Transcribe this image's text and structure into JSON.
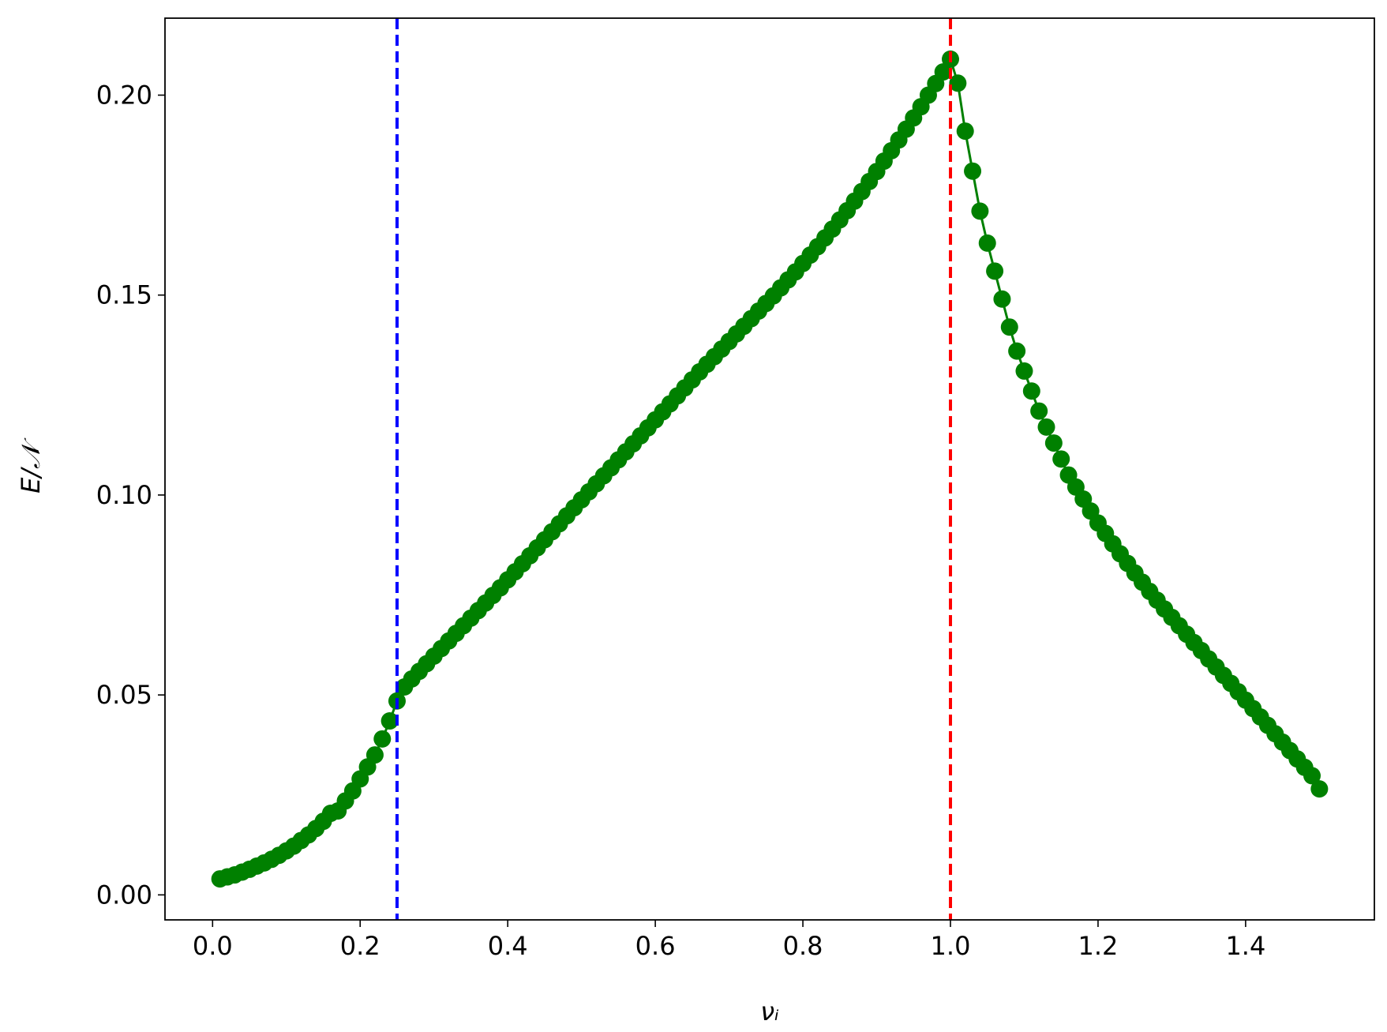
{
  "chart_data": {
    "type": "line",
    "xlabel": "νᵢ",
    "ylabel": "E/𝒩",
    "xlim": [
      -0.0645,
      1.5745
    ],
    "ylim": [
      -0.00625,
      0.21925
    ],
    "xticks": [
      {
        "value": 0,
        "label": "0.0"
      },
      0.2,
      0.4,
      0.6,
      0.8,
      {
        "value": 1,
        "label": "1.0"
      },
      1.2,
      1.4
    ],
    "yticks": [
      {
        "value": 0,
        "label": "0.00"
      },
      0.05,
      {
        "value": 0.1,
        "label": "0.10"
      },
      0.15,
      {
        "value": 0.2,
        "label": "0.20"
      }
    ],
    "vlines": [
      {
        "x": 0.25,
        "color": "#0000ff"
      },
      {
        "x": 1.0,
        "color": "#ff0000"
      }
    ],
    "series": [
      {
        "color": "#008000",
        "x": [
          0.01,
          0.02,
          0.03,
          0.04,
          0.05,
          0.06,
          0.07,
          0.08,
          0.09,
          0.1,
          0.11,
          0.12,
          0.13,
          0.14,
          0.15,
          0.16,
          0.17,
          0.18,
          0.19,
          0.2,
          0.21,
          0.22,
          0.23,
          0.24,
          0.25,
          0.26,
          0.27,
          0.28,
          0.29,
          0.3,
          0.31,
          0.32,
          0.33,
          0.34,
          0.35,
          0.36,
          0.37,
          0.38,
          0.39,
          0.4,
          0.41,
          0.42,
          0.43,
          0.44,
          0.45,
          0.46,
          0.47,
          0.48,
          0.49,
          0.5,
          0.51,
          0.52,
          0.53,
          0.54,
          0.55,
          0.56,
          0.57,
          0.58,
          0.59,
          0.6,
          0.61,
          0.62,
          0.63,
          0.64,
          0.65,
          0.66,
          0.67,
          0.68,
          0.69,
          0.7,
          0.71,
          0.72,
          0.73,
          0.74,
          0.75,
          0.76,
          0.77,
          0.78,
          0.79,
          0.8,
          0.81,
          0.82,
          0.83,
          0.84,
          0.85,
          0.86,
          0.87,
          0.88,
          0.89,
          0.9,
          0.91,
          0.92,
          0.93,
          0.94,
          0.95,
          0.96,
          0.97,
          0.98,
          0.99,
          1.0,
          1.01,
          1.02,
          1.03,
          1.04,
          1.05,
          1.06,
          1.07,
          1.08,
          1.09,
          1.1,
          1.11,
          1.12,
          1.13,
          1.14,
          1.15,
          1.16,
          1.17,
          1.18,
          1.19,
          1.2,
          1.21,
          1.22,
          1.23,
          1.24,
          1.25,
          1.26,
          1.27,
          1.28,
          1.29,
          1.3,
          1.31,
          1.32,
          1.33,
          1.34,
          1.35,
          1.36,
          1.37,
          1.38,
          1.39,
          1.4,
          1.41,
          1.42,
          1.43,
          1.44,
          1.45,
          1.46,
          1.47,
          1.48,
          1.49,
          1.5
        ],
        "values": [
          0.004,
          0.0045,
          0.005,
          0.0057,
          0.0064,
          0.0072,
          0.008,
          0.0089,
          0.0099,
          0.011,
          0.0122,
          0.0136,
          0.015,
          0.0166,
          0.0184,
          0.0204,
          0.021,
          0.0235,
          0.026,
          0.029,
          0.032,
          0.035,
          0.039,
          0.0435,
          0.0485,
          0.052,
          0.054,
          0.0559,
          0.0578,
          0.0597,
          0.0616,
          0.0635,
          0.0654,
          0.0673,
          0.0692,
          0.0711,
          0.073,
          0.0749,
          0.0768,
          0.0788,
          0.0808,
          0.0828,
          0.0848,
          0.0868,
          0.0888,
          0.0908,
          0.0928,
          0.0948,
          0.0968,
          0.0988,
          0.1008,
          0.1028,
          0.1048,
          0.1068,
          0.1088,
          0.1108,
          0.1128,
          0.1148,
          0.1168,
          0.1188,
          0.1208,
          0.1228,
          0.1248,
          0.1268,
          0.1288,
          0.1308,
          0.1327,
          0.1346,
          0.1365,
          0.1384,
          0.1403,
          0.1422,
          0.1441,
          0.146,
          0.1479,
          0.1498,
          0.1518,
          0.1538,
          0.1558,
          0.1579,
          0.16,
          0.1621,
          0.1643,
          0.1665,
          0.1688,
          0.1711,
          0.1735,
          0.1759,
          0.1784,
          0.1809,
          0.1835,
          0.1861,
          0.1888,
          0.1915,
          0.1943,
          0.1971,
          0.2,
          0.2029,
          0.2058,
          0.209,
          0.203,
          0.191,
          0.181,
          0.171,
          0.163,
          0.156,
          0.149,
          0.142,
          0.136,
          0.131,
          0.126,
          0.121,
          0.117,
          0.113,
          0.109,
          0.105,
          0.102,
          0.099,
          0.096,
          0.093,
          0.0904,
          0.0878,
          0.0853,
          0.0829,
          0.0805,
          0.0782,
          0.0759,
          0.0737,
          0.0715,
          0.0694,
          0.0673,
          0.0652,
          0.0631,
          0.0611,
          0.059,
          0.057,
          0.0549,
          0.0529,
          0.0508,
          0.0487,
          0.0466,
          0.0445,
          0.0424,
          0.0403,
          0.0382,
          0.0361,
          0.034,
          0.0319,
          0.0298,
          0.0265
        ]
      }
    ]
  }
}
